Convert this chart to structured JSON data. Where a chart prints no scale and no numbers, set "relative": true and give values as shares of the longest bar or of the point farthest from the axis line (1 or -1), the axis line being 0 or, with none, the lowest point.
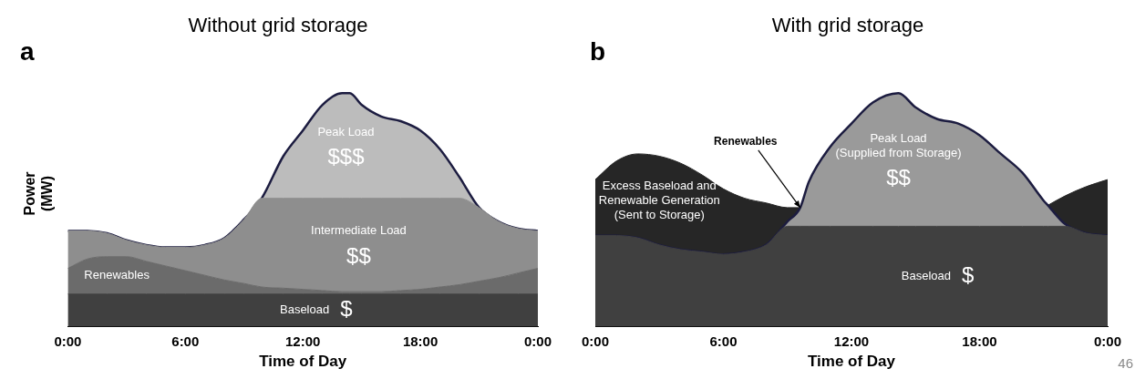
{
  "chart_data": [
    {
      "type": "area",
      "title": "Without grid storage",
      "xlabel": "Time of Day",
      "ylabel": "Power (MW)",
      "relative": true,
      "legend": false,
      "x": [
        0,
        1,
        2,
        3,
        4,
        5,
        6,
        7,
        8,
        9,
        9.9,
        11,
        12,
        13,
        14,
        14.4,
        15,
        16,
        17,
        18,
        19,
        20,
        21,
        22,
        23,
        24
      ],
      "xlim": [
        0,
        24
      ],
      "xticks": [
        {
          "value": 0,
          "label": "0:00"
        },
        {
          "value": 6,
          "label": "6:00"
        },
        {
          "value": 12,
          "label": "12:00"
        },
        {
          "value": 18,
          "label": "18:00"
        },
        {
          "value": 24,
          "label": "0:00"
        }
      ],
      "series": [
        {
          "name": "Baseload $",
          "color": "#404040",
          "values": [
            0.14,
            0.14,
            0.14,
            0.14,
            0.14,
            0.14,
            0.14,
            0.14,
            0.14,
            0.14,
            0.14,
            0.14,
            0.14,
            0.14,
            0.14,
            0.14,
            0.14,
            0.14,
            0.14,
            0.14,
            0.14,
            0.14,
            0.14,
            0.14,
            0.14,
            0.14
          ]
        },
        {
          "name": "Renewables",
          "color": "#6b6b6b",
          "values": [
            0.25,
            0.29,
            0.3,
            0.3,
            0.28,
            0.26,
            0.24,
            0.22,
            0.2,
            0.185,
            0.17,
            0.165,
            0.16,
            0.155,
            0.15,
            0.15,
            0.15,
            0.15,
            0.155,
            0.16,
            0.17,
            0.18,
            0.195,
            0.21,
            0.23,
            0.25
          ]
        },
        {
          "name": "Intermediate Load $$",
          "color": "#8e8e8e",
          "values": [
            0.41,
            0.41,
            0.4,
            0.37,
            0.35,
            0.34,
            0.34,
            0.35,
            0.38,
            0.46,
            0.55,
            0.55,
            0.55,
            0.55,
            0.55,
            0.55,
            0.55,
            0.55,
            0.55,
            0.55,
            0.55,
            0.55,
            0.51,
            0.45,
            0.42,
            0.41
          ]
        },
        {
          "name": "Peak Load $$$",
          "color": "#bcbcbc",
          "values": [
            0.41,
            0.41,
            0.4,
            0.37,
            0.35,
            0.34,
            0.34,
            0.35,
            0.38,
            0.46,
            0.55,
            0.73,
            0.84,
            0.95,
            1,
            1,
            0.95,
            0.9,
            0.88,
            0.84,
            0.76,
            0.64,
            0.51,
            0.45,
            0.42,
            0.41
          ]
        }
      ],
      "annotations": [
        "a"
      ]
    },
    {
      "type": "area",
      "title": "With grid storage",
      "xlabel": "Time of Day",
      "relative": true,
      "legend": false,
      "x": [
        0,
        1,
        2,
        3,
        4,
        5,
        6,
        7,
        8,
        9,
        9.6,
        10,
        11,
        12,
        13,
        14.2,
        15,
        16,
        17,
        18,
        19,
        20,
        21,
        21.2,
        22,
        23,
        24
      ],
      "xlim": [
        0,
        24
      ],
      "xticks": [
        {
          "value": 0,
          "label": "0:00"
        },
        {
          "value": 6,
          "label": "6:00"
        },
        {
          "value": 12,
          "label": "12:00"
        },
        {
          "value": 18,
          "label": "18:00"
        },
        {
          "value": 24,
          "label": "0:00"
        }
      ],
      "series": [
        {
          "name": "Baseload $",
          "color": "#404040",
          "values": [
            0.39,
            0.39,
            0.38,
            0.35,
            0.33,
            0.32,
            0.31,
            0.32,
            0.35,
            0.43,
            0.43,
            0.43,
            0.43,
            0.43,
            0.43,
            0.43,
            0.43,
            0.43,
            0.43,
            0.43,
            0.43,
            0.43,
            0.43,
            0.43,
            0.43,
            0.4,
            0.39
          ]
        },
        {
          "name": "Peak Load (Supplied from Storage) $$",
          "color": "#9a9a9a",
          "values": [
            0.39,
            0.39,
            0.38,
            0.35,
            0.33,
            0.32,
            0.31,
            0.32,
            0.35,
            0.45,
            0.51,
            0.62,
            0.77,
            0.87,
            0.96,
            1,
            0.94,
            0.89,
            0.87,
            0.82,
            0.74,
            0.66,
            0.54,
            0.52,
            0.44,
            0.4,
            0.39
          ]
        },
        {
          "name": "Excess Baseload and Renewable Generation (Sent to Storage)",
          "color": "#262626",
          "values": [
            0.63,
            0.71,
            0.74,
            0.73,
            0.7,
            0.65,
            0.59,
            0.55,
            0.53,
            0.51,
            0.51,
            null,
            null,
            null,
            null,
            null,
            null,
            null,
            null,
            null,
            null,
            null,
            null,
            0.52,
            0.56,
            0.6,
            0.63
          ]
        }
      ],
      "annotations": [
        "b",
        {
          "text": "Renewables",
          "x": 9.6,
          "y": 0.51
        },
        "46"
      ]
    }
  ]
}
